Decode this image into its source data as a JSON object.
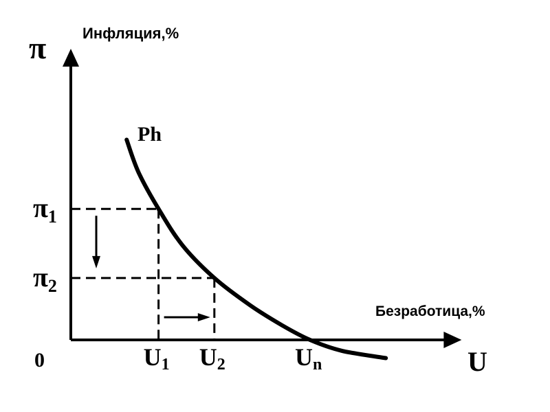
{
  "chart_data": {
    "type": "line",
    "title": "",
    "ylabel": "Инфляция,%",
    "xlabel": "Безработица,%",
    "y_axis_symbol": "π",
    "x_axis_symbol": "U",
    "origin_label": "0",
    "curve_label": "Ph",
    "y_marks": [
      {
        "symbol": "π",
        "sub": "1",
        "value": 3.6
      },
      {
        "symbol": "π",
        "sub": "2",
        "value": 1.7
      }
    ],
    "x_marks": [
      {
        "symbol": "U",
        "sub": "1",
        "value": 2.2
      },
      {
        "symbol": "U",
        "sub": "2",
        "value": 3.6
      },
      {
        "symbol": "U",
        "sub": "n",
        "value": 6.0
      }
    ],
    "series": [
      {
        "name": "Ph",
        "x": [
          1.4,
          1.7,
          2.2,
          2.8,
          3.6,
          4.5,
          5.3,
          6.0,
          6.8,
          7.9
        ],
        "y": [
          5.5,
          4.6,
          3.6,
          2.6,
          1.7,
          0.95,
          0.4,
          0.0,
          -0.3,
          -0.5
        ]
      }
    ],
    "xlim": [
      0,
      9.8
    ],
    "ylim": [
      -0.6,
      8.0
    ],
    "grid": false,
    "legend": "none"
  }
}
